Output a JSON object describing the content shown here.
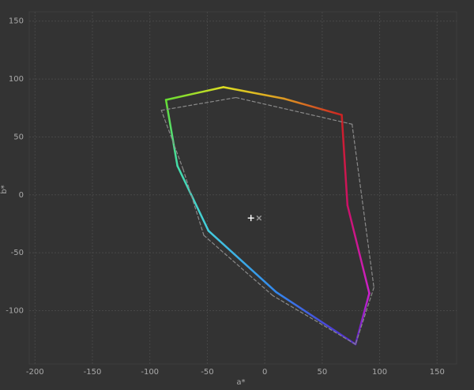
{
  "chart_data": {
    "type": "line",
    "xlabel": "a*",
    "ylabel": "b*",
    "xlim": [
      -205,
      167
    ],
    "ylim": [
      -146,
      158
    ],
    "xticks": [
      -200,
      -150,
      -100,
      -50,
      0,
      50,
      100,
      150
    ],
    "yticks": [
      -100,
      -50,
      0,
      50,
      100,
      150
    ],
    "grid": true,
    "series": [
      {
        "x": [
          -86,
          -36,
          17,
          67,
          72,
          91,
          79,
          10,
          -49,
          -76,
          -86
        ],
        "values": [
          82,
          93,
          83,
          69,
          -9,
          -85,
          -129,
          -84,
          -31,
          25,
          82
        ],
        "colors": [
          "#66dd33",
          "#dddd22",
          "#dd9922",
          "#cc2222",
          "#cc1166",
          "#cc22cc",
          "#5522cc",
          "#3388ee",
          "#44ccdd",
          "#44ddaa",
          "#66dd33"
        ],
        "style": "solid"
      },
      {
        "x": [
          -90,
          -25,
          76,
          95,
          79,
          7,
          -53,
          -71,
          -90
        ],
        "values": [
          73,
          84,
          61,
          -80,
          -129,
          -87,
          -35,
          22,
          73
        ],
        "color": "#8a8a8a",
        "style": "dashed"
      }
    ],
    "markers": {
      "x": [
        -12,
        -5
      ],
      "values": [
        -20,
        -20
      ],
      "shapes": [
        "plus",
        "cross"
      ],
      "colors": [
        "#ffffff",
        "#999999"
      ]
    }
  }
}
